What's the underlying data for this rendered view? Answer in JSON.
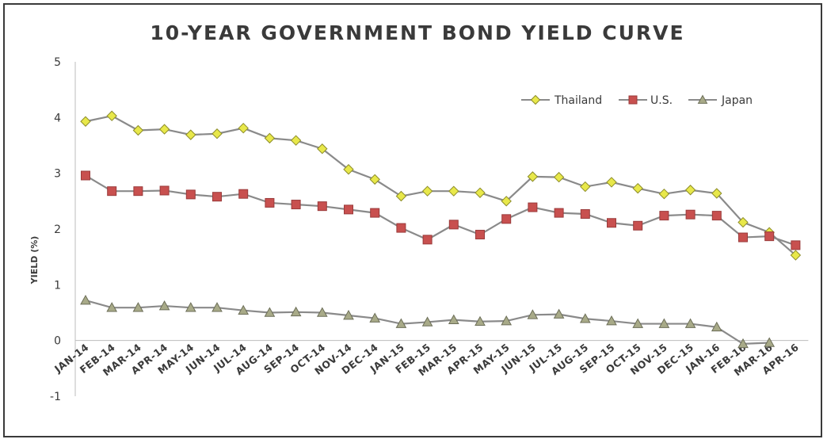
{
  "chart_data": {
    "type": "line",
    "title": "10-YEAR GOVERNMENT BOND YIELD CURVE",
    "ylabel": "YIELD (%)",
    "xlabel": "",
    "ylim": [
      -1,
      5
    ],
    "yticks": [
      "-1",
      "0",
      "1",
      "2",
      "3",
      "4",
      "5"
    ],
    "grid": false,
    "legend_position": "top-right",
    "categories": [
      "JAN-14",
      "FEB-14",
      "MAR-14",
      "APR-14",
      "MAY-14",
      "JUN-14",
      "JUL-14",
      "AUG-14",
      "SEP-14",
      "OCT-14",
      "NOV-14",
      "DEC-14",
      "JAN-15",
      "FEB-15",
      "MAR-15",
      "APR-15",
      "MAY-15",
      "JUN-15",
      "JUL-15",
      "AUG-15",
      "SEP-15",
      "OCT-15",
      "NOV-15",
      "DEC-15",
      "JAN-16",
      "FEB-16",
      "MAR-16",
      "APR-16"
    ],
    "series": [
      {
        "name": "Thailand",
        "marker": "diamond",
        "color": "#e8e84a",
        "stroke": "#8c8c2a",
        "line_color": "#8a8a8a",
        "values": [
          3.93,
          4.03,
          3.77,
          3.79,
          3.69,
          3.71,
          3.81,
          3.63,
          3.59,
          3.44,
          3.07,
          2.89,
          2.59,
          2.68,
          2.68,
          2.65,
          2.5,
          2.94,
          2.93,
          2.76,
          2.84,
          2.73,
          2.63,
          2.7,
          2.64,
          2.12,
          1.94,
          1.53
        ]
      },
      {
        "name": "U.S.",
        "marker": "square",
        "color": "#c8504f",
        "stroke": "#9a3a3a",
        "line_color": "#8a8a8a",
        "values": [
          2.96,
          2.68,
          2.68,
          2.69,
          2.62,
          2.58,
          2.63,
          2.47,
          2.44,
          2.41,
          2.35,
          2.29,
          2.02,
          1.81,
          2.08,
          1.9,
          2.18,
          2.39,
          2.29,
          2.27,
          2.11,
          2.06,
          2.24,
          2.26,
          2.24,
          1.85,
          1.87,
          1.71
        ]
      },
      {
        "name": "Japan",
        "marker": "triangle",
        "color": "#a8aa88",
        "stroke": "#6c6e58",
        "line_color": "#8a8a8a",
        "values": [
          0.72,
          0.59,
          0.59,
          0.62,
          0.59,
          0.59,
          0.54,
          0.5,
          0.51,
          0.5,
          0.45,
          0.4,
          0.3,
          0.33,
          0.37,
          0.34,
          0.35,
          0.46,
          0.47,
          0.39,
          0.35,
          0.3,
          0.3,
          0.3,
          0.24,
          -0.06,
          -0.04,
          null
        ]
      }
    ]
  }
}
